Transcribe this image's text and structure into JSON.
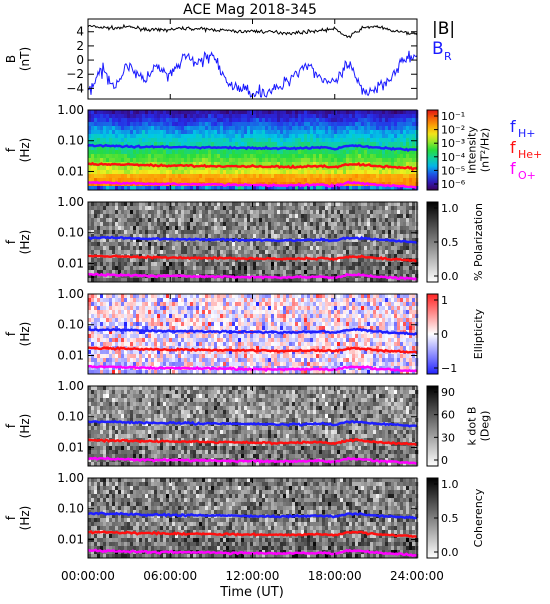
{
  "title": "ACE Mag 2018-345",
  "colors": {
    "B_total": "#000000",
    "B_R": "#1a1aff",
    "f_H": "#1f1fff",
    "f_He": "#ff1010",
    "f_O": "#ff00ff"
  },
  "chart_data": [
    {
      "type": "line",
      "panel": "magnetic field",
      "ylabel": "B\n(nT)",
      "ylim": [
        -5.5,
        5.8
      ],
      "yticks": [
        4,
        2,
        0,
        -2,
        -4
      ],
      "x_range": [
        "00:00:00",
        "24:00:00"
      ],
      "series": [
        {
          "name": "|B|",
          "description": "total field",
          "approx_values": [
            4.8,
            4.6,
            4.5,
            4.7,
            4.4,
            4.2,
            4.3,
            4.5,
            4.4,
            4.3,
            4.2,
            4.0,
            4.1,
            4.0,
            3.9,
            3.8,
            4.0,
            4.2,
            4.4,
            3.2,
            4.5,
            4.8,
            4.2,
            3.9,
            3.7
          ]
        },
        {
          "name": "B_R",
          "description": "radial component",
          "approx_values": [
            -4.5,
            -1.5,
            -3.5,
            -0.5,
            -3.0,
            -1.0,
            -2.5,
            0.5,
            -0.5,
            1.0,
            -3.0,
            -4.0,
            -4.5,
            -4.5,
            -4.0,
            -2.0,
            -0.5,
            -2.5,
            -3.5,
            -0.5,
            -4.5,
            -4.0,
            -2.5,
            0.0,
            0.5
          ]
        }
      ],
      "legend": [
        "|B|",
        "B_R"
      ]
    },
    {
      "type": "heatmap",
      "panel": "power spectrum",
      "ylabel": "f\n(Hz)",
      "yticks": [
        "1.00",
        "0.10",
        "0.01"
      ],
      "colorbar_label": "Intensity\n(nT²/Hz)",
      "colorbar_ticks": [
        "10⁻¹",
        "10⁻²",
        "10⁻³",
        "10⁻⁴",
        "10⁻⁵",
        "10⁻⁶"
      ],
      "colormap": "rainbow",
      "legend": [
        "f_H+",
        "f_He+",
        "f_O+"
      ]
    },
    {
      "type": "heatmap",
      "panel": "polarization",
      "ylabel": "f\n(Hz)",
      "yticks": [
        "1.00",
        "0.10",
        "0.01"
      ],
      "colorbar_label": "% Polarization",
      "colorbar_ticks": [
        "1.0",
        "0.5",
        "0.0"
      ],
      "colormap": "grayscale"
    },
    {
      "type": "heatmap",
      "panel": "ellipticity",
      "ylabel": "f\n(Hz)",
      "yticks": [
        "1.00",
        "0.10",
        "0.01"
      ],
      "colorbar_label": "Ellipticity",
      "colorbar_ticks": [
        "1",
        "0",
        "−1"
      ],
      "colormap": "blue-white-red"
    },
    {
      "type": "heatmap",
      "panel": "wave normal angle",
      "ylabel": "f\n(Hz)",
      "yticks": [
        "1.00",
        "0.10",
        "0.01"
      ],
      "colorbar_label": "k dot B\n(Deg)",
      "colorbar_ticks": [
        "90",
        "60",
        "30",
        "0"
      ],
      "colormap": "grayscale"
    },
    {
      "type": "heatmap",
      "panel": "coherency",
      "ylabel": "f\n(Hz)",
      "yticks": [
        "1.00",
        "0.10",
        "0.01"
      ],
      "colorbar_label": "Coherency",
      "colorbar_ticks": [
        "1.0",
        "0.5",
        "0.0"
      ],
      "colormap": "grayscale"
    }
  ],
  "gyro_lines": {
    "f_H": [
      0.07,
      0.069,
      0.068,
      0.066,
      0.064,
      0.063,
      0.062,
      0.062,
      0.061,
      0.06,
      0.06,
      0.058,
      0.058,
      0.057,
      0.056,
      0.057,
      0.058,
      0.06,
      0.055,
      0.068,
      0.067,
      0.06,
      0.056,
      0.053,
      0.05
    ],
    "f_He": [
      0.0175,
      0.0172,
      0.017,
      0.0166,
      0.016,
      0.0158,
      0.0155,
      0.0155,
      0.0152,
      0.015,
      0.015,
      0.0145,
      0.0145,
      0.0143,
      0.014,
      0.0143,
      0.0145,
      0.015,
      0.0137,
      0.017,
      0.0168,
      0.015,
      0.014,
      0.0133,
      0.0125
    ],
    "f_O": [
      0.0044,
      0.0043,
      0.0042,
      0.0041,
      0.004,
      0.0039,
      0.0039,
      0.0039,
      0.0038,
      0.0038,
      0.0037,
      0.0036,
      0.0036,
      0.0036,
      0.0035,
      0.0036,
      0.0036,
      0.0037,
      0.0034,
      0.0043,
      0.0042,
      0.0037,
      0.0035,
      0.0033,
      0.0031
    ]
  },
  "legend_labels": {
    "B_total": "|B|",
    "B_R_main": "B",
    "B_R_sub": "R",
    "f_main": "f",
    "f_H_sub": "H+",
    "f_He_sub": "He+",
    "f_O_sub": "O+"
  },
  "xaxis": {
    "label": "Time (UT)",
    "ticks": [
      "00:00:00",
      "06:00:00",
      "12:00:00",
      "18:00:00",
      "24:00:00"
    ]
  }
}
